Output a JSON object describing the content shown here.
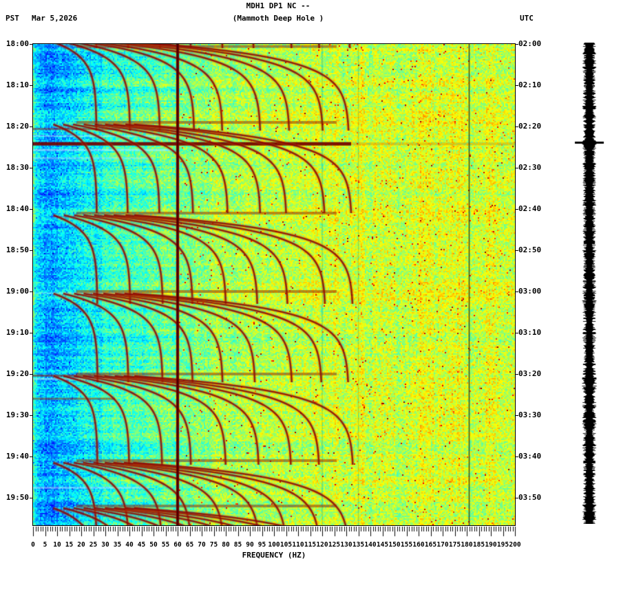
{
  "header": {
    "title": "MDH1 DP1 NC --",
    "subtitle": "(Mammoth Deep Hole )",
    "left_timezone": "PST",
    "date": "Mar 5,2026",
    "right_timezone": "UTC"
  },
  "chart_data": {
    "type": "heatmap",
    "title": "MDH1 DP1 NC -- (Mammoth Deep Hole )",
    "xlabel": "FREQUENCY (HZ)",
    "x_range_hz": [
      0,
      200
    ],
    "x_major_tick_step_hz": 5,
    "x_minor_tick_step_hz": 1,
    "x_tick_labels": [
      "0",
      "5",
      "10",
      "15",
      "20",
      "25",
      "30",
      "35",
      "40",
      "45",
      "50",
      "55",
      "60",
      "65",
      "70",
      "75",
      "80",
      "85",
      "90",
      "95",
      "100",
      "105",
      "110",
      "115",
      "120",
      "125",
      "130",
      "135",
      "140",
      "145",
      "150",
      "155",
      "160",
      "165",
      "170",
      "175",
      "180",
      "185",
      "190",
      "195",
      "200"
    ],
    "y_axis_left": {
      "timezone": "PST",
      "tick_interval_minutes": 10,
      "ticks": [
        "18:00",
        "18:10",
        "18:20",
        "18:30",
        "18:40",
        "18:50",
        "19:00",
        "19:10",
        "19:20",
        "19:30",
        "19:40",
        "19:50"
      ]
    },
    "y_axis_right": {
      "timezone": "UTC",
      "tick_interval_minutes": 10,
      "ticks": [
        "02:00",
        "02:10",
        "02:20",
        "02:30",
        "02:40",
        "02:50",
        "03:00",
        "03:10",
        "03:20",
        "03:30",
        "03:40",
        "03:50"
      ]
    },
    "colormap": "jet",
    "features": {
      "power_line_hz": 60,
      "power_line_harmonic_hz": 181,
      "faint_dark_columns_hz": [
        120,
        135
      ],
      "harmonic_tremor_events": {
        "onset_minutes_after_1800": [
          -21,
          -1,
          19,
          41,
          60,
          80,
          101,
          112
        ],
        "fundamental_asymptote_hz": 13.3,
        "harmonics": [
          2,
          3,
          4,
          5,
          6,
          7,
          8,
          9,
          10
        ],
        "glide_time_constant_min": 3.8,
        "onset_frequency_fraction": 0.22
      },
      "broadband_bursts": [
        {
          "t_min": 0.6,
          "f_lo": 18,
          "f_hi": 126,
          "color": "rgba(150,25,0,0.5)",
          "h": 4
        },
        {
          "t_min": 20.6,
          "f_lo": 0,
          "f_hi": 36,
          "color": "rgba(160,30,0,0.5)",
          "h": 3
        },
        {
          "t_min": 22.3,
          "f_lo": 0,
          "f_hi": 58,
          "color": "rgba(205,240,255,0.5)",
          "h": 2
        },
        {
          "t_min": 24.2,
          "f_lo": 0,
          "f_hi": 132,
          "color": "rgba(115,0,0,0.92)",
          "h": 5
        },
        {
          "t_min": 24.2,
          "f_lo": 132,
          "f_hi": 200,
          "color": "rgba(205,120,0,0.35)",
          "h": 4
        },
        {
          "t_min": 25.7,
          "f_lo": 0,
          "f_hi": 58,
          "color": "rgba(195,238,255,0.55)",
          "h": 3
        },
        {
          "t_min": 27.7,
          "f_lo": 0,
          "f_hi": 50,
          "color": "rgba(175,228,255,0.45)",
          "h": 3
        },
        {
          "t_min": 60.4,
          "f_lo": 0,
          "f_hi": 45,
          "color": "rgba(185,232,255,0.4)",
          "h": 2
        },
        {
          "t_min": 80.4,
          "f_lo": 0,
          "f_hi": 30,
          "color": "rgba(150,20,0,0.55)",
          "h": 3
        },
        {
          "t_min": 81.2,
          "f_lo": 0,
          "f_hi": 55,
          "color": "rgba(185,232,255,0.5)",
          "h": 3
        },
        {
          "t_min": 86.0,
          "f_lo": 0,
          "f_hi": 34,
          "color": "rgba(150,20,0,0.5)",
          "h": 3
        },
        {
          "t_min": 107.6,
          "f_lo": 0,
          "f_hi": 48,
          "color": "rgba(185,232,255,0.5)",
          "h": 3
        }
      ],
      "waveform_spike_minute": 24.2
    }
  }
}
